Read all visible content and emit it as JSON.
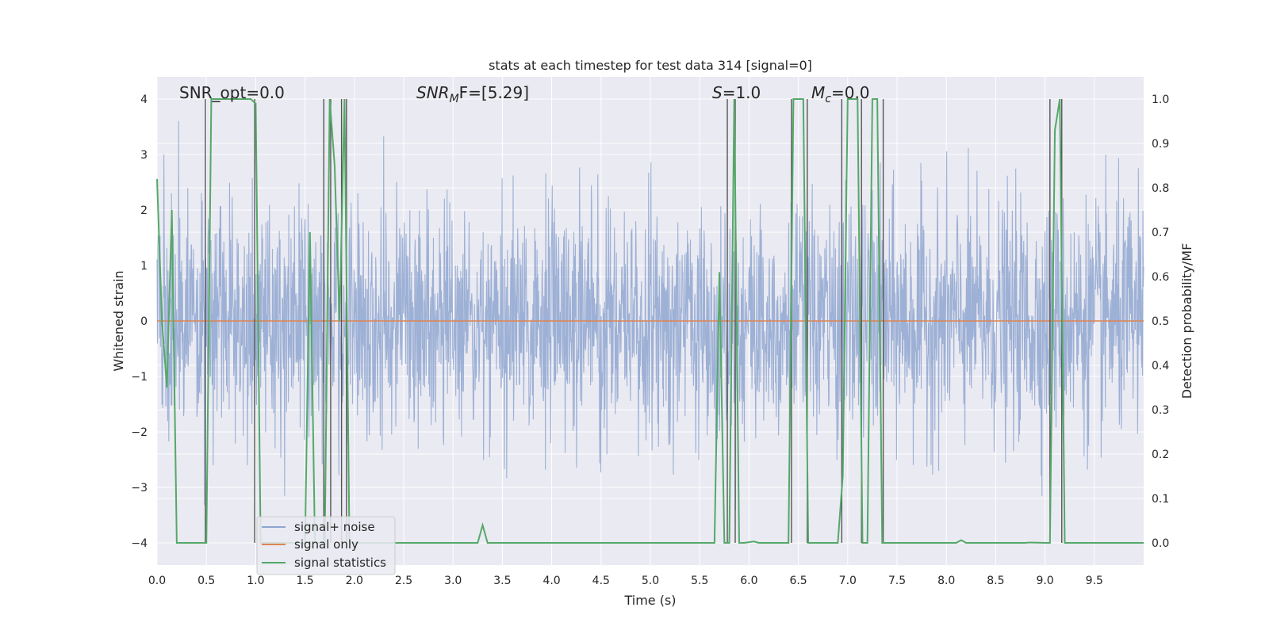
{
  "chart_data": {
    "type": "line",
    "title": "stats at each timestep for test data 314 [signal=0]",
    "xlabel": "Time (s)",
    "ylabel": "Whitened strain",
    "ylabel_right": "Detection probability/MF",
    "xlim": [
      0.0,
      10.0
    ],
    "ylim": [
      -4.4,
      4.4
    ],
    "ylim_right": [
      -0.05,
      1.05
    ],
    "x_ticks": [
      "0.0",
      "0.5",
      "1.0",
      "1.5",
      "2.0",
      "2.5",
      "3.0",
      "3.5",
      "4.0",
      "4.5",
      "5.0",
      "5.5",
      "6.0",
      "6.5",
      "7.0",
      "7.5",
      "8.0",
      "8.5",
      "9.0",
      "9.5"
    ],
    "y_ticks": [
      "4",
      "3",
      "2",
      "1",
      "0",
      "−1",
      "−2",
      "−3",
      "−4"
    ],
    "y_ticks_right": [
      "1.0",
      "0.9",
      "0.8",
      "0.7",
      "0.6",
      "0.5",
      "0.4",
      "0.3",
      "0.2",
      "0.1",
      "0.0"
    ],
    "grid": true,
    "legend_position": "lower-left",
    "annotations": {
      "snr_opt": "SNR_opt=0.0",
      "snr_mf_sym": "SNR",
      "snr_mf_sub": "M",
      "snr_mf_tail": "F=[5.29]",
      "s_sym": "S",
      "s_val": "=1.0",
      "mc_sym": "M",
      "mc_sub": "c",
      "mc_val": "=0.0"
    },
    "series": [
      {
        "name": "signal+ noise",
        "color": "#8fa6d0",
        "axis": "left",
        "description_values": "whitened noise, approx. Gaussian, sigma ~1, peaks to about ±4"
      },
      {
        "name": "signal only",
        "color": "#dd8452",
        "axis": "left",
        "x": [
          0.0,
          10.0
        ],
        "y": [
          0.0,
          0.0
        ]
      },
      {
        "name": "signal statistics",
        "color": "#55a868",
        "axis": "right",
        "x": [
          0.0,
          0.05,
          0.1,
          0.15,
          0.2,
          0.5,
          0.55,
          0.6,
          0.95,
          1.0,
          1.05,
          1.1,
          1.5,
          1.55,
          1.6,
          1.7,
          1.75,
          1.8,
          1.85,
          1.9,
          1.95,
          2.0,
          2.05,
          2.1,
          3.25,
          3.3,
          3.35,
          3.7,
          5.6,
          5.65,
          5.7,
          5.75,
          5.8,
          5.85,
          5.9,
          5.95,
          6.05,
          6.1,
          6.4,
          6.45,
          6.5,
          6.55,
          6.6,
          6.65,
          6.9,
          6.95,
          7.0,
          7.1,
          7.15,
          7.2,
          7.25,
          7.3,
          7.35,
          7.4,
          7.45,
          8.1,
          8.15,
          8.2,
          8.8,
          8.85,
          9.0,
          9.05,
          9.1,
          9.15,
          9.2,
          9.25,
          9.3,
          10.0
        ],
        "y": [
          0.82,
          0.5,
          0.35,
          0.75,
          0.0,
          0.0,
          1.0,
          1.0,
          1.0,
          0.99,
          0.0,
          0.0,
          0.0,
          0.7,
          0.0,
          0.0,
          1.0,
          0.85,
          0.5,
          1.0,
          0.0,
          0.0,
          0.0,
          0.0,
          0.0,
          0.04,
          0.0,
          0.0,
          0.0,
          0.0,
          0.61,
          0.0,
          0.0,
          1.0,
          0.0,
          0.0,
          0.003,
          0.0,
          0.0,
          1.0,
          1.0,
          1.0,
          0.0,
          0.0,
          0.0,
          0.15,
          1.0,
          1.0,
          0.0,
          0.0,
          1.0,
          1.0,
          0.0,
          0.0,
          0.0,
          0.0,
          0.006,
          0.0,
          0.0,
          0.001,
          0.0,
          0.0,
          0.93,
          1.0,
          0.0,
          0.0,
          0.0,
          0.0
        ]
      }
    ],
    "vertical_markers_x": [
      0.49,
      0.99,
      1.69,
      1.76,
      1.87,
      1.92,
      5.78,
      5.86,
      6.43,
      6.59,
      6.94,
      7.14,
      7.36,
      9.05,
      9.17
    ]
  }
}
